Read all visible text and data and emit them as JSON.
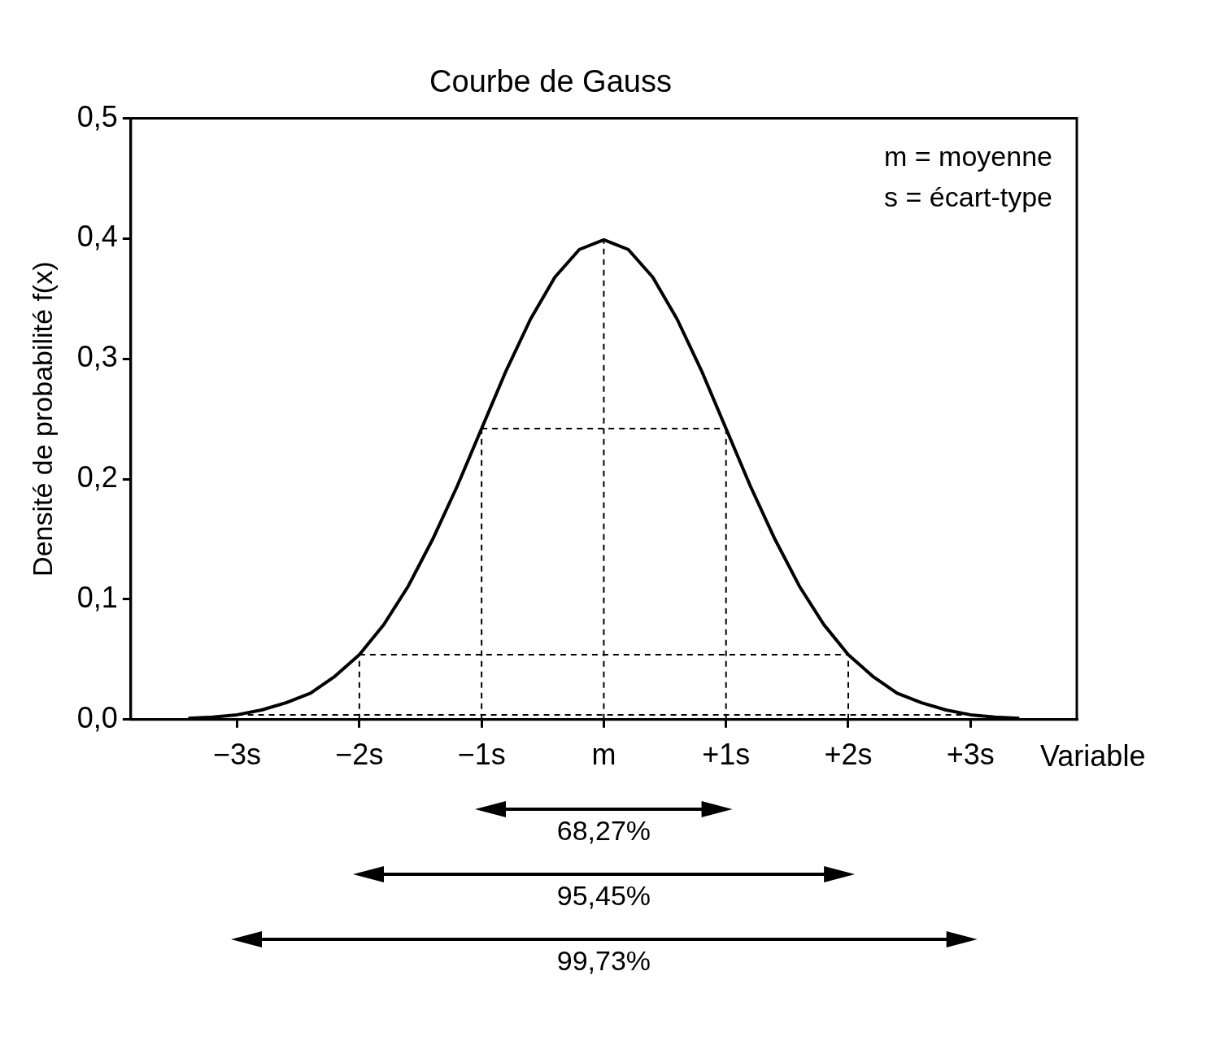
{
  "chart_data": {
    "type": "line",
    "title": "Courbe de Gauss",
    "xlabel": "Variable",
    "ylabel": "Densité de probabilité f(x)",
    "xlim": [
      -3.87,
      3.87
    ],
    "xticks": [
      {
        "value": -3,
        "label": "−3s"
      },
      {
        "value": -2,
        "label": "−2s"
      },
      {
        "value": -1,
        "label": "−1s"
      },
      {
        "value": 0,
        "label": "m"
      },
      {
        "value": 1,
        "label": "+1s"
      },
      {
        "value": 2,
        "label": "+2s"
      },
      {
        "value": 3,
        "label": "+3s"
      }
    ],
    "ylim": [
      0,
      0.5
    ],
    "yticks": [
      {
        "value": 0,
        "label": "0,0"
      },
      {
        "value": 0.1,
        "label": "0,1"
      },
      {
        "value": 0.2,
        "label": "0,2"
      },
      {
        "value": 0.3,
        "label": "0,3"
      },
      {
        "value": 0.4,
        "label": "0,4"
      },
      {
        "value": 0.5,
        "label": "0,5"
      }
    ],
    "grid": false,
    "legend": false,
    "marker": "none",
    "series": [
      {
        "color": "#000000",
        "line_style": "solid",
        "x": [
          -3.4,
          -3.2,
          -3.0,
          -2.8,
          -2.6,
          -2.4,
          -2.2,
          -2.0,
          -1.8,
          -1.6,
          -1.4,
          -1.2,
          -1.0,
          -0.8,
          -0.6,
          -0.4,
          -0.2,
          0,
          0.2,
          0.4,
          0.6,
          0.8,
          1.0,
          1.2,
          1.4,
          1.6,
          1.8,
          2.0,
          2.2,
          2.4,
          2.6,
          2.8,
          3.0,
          3.2,
          3.4
        ],
        "values": [
          0.001,
          0.002,
          0.004,
          0.008,
          0.014,
          0.022,
          0.036,
          0.054,
          0.079,
          0.111,
          0.15,
          0.194,
          0.242,
          0.29,
          0.333,
          0.368,
          0.391,
          0.399,
          0.391,
          0.368,
          0.333,
          0.29,
          0.242,
          0.194,
          0.15,
          0.111,
          0.079,
          0.054,
          0.036,
          0.022,
          0.014,
          0.008,
          0.004,
          0.002,
          0.001
        ]
      },
      {
        "color": "#000000",
        "line_style": "dashed",
        "x": [
          -2,
          -2
        ],
        "values": [
          0,
          0.054
        ]
      },
      {
        "color": "#000000",
        "line_style": "dashed",
        "x": [
          -1,
          -1
        ],
        "values": [
          0,
          0.242
        ]
      },
      {
        "color": "#000000",
        "line_style": "dashed",
        "x": [
          0,
          0
        ],
        "values": [
          0,
          0.399
        ]
      },
      {
        "color": "#000000",
        "line_style": "dashed",
        "x": [
          1,
          1
        ],
        "values": [
          0,
          0.242
        ]
      },
      {
        "color": "#000000",
        "line_style": "dashed",
        "x": [
          2,
          2
        ],
        "values": [
          0,
          0.054
        ]
      },
      {
        "color": "#000000",
        "line_style": "dashed",
        "x": [
          -1,
          1
        ],
        "values": [
          0.242,
          0.242
        ]
      },
      {
        "color": "#000000",
        "line_style": "dashed",
        "x": [
          -2,
          2
        ],
        "values": [
          0.054,
          0.054
        ]
      },
      {
        "color": "#000000",
        "line_style": "dashed",
        "x": [
          -3,
          3
        ],
        "values": [
          0.004,
          0.004
        ]
      }
    ],
    "annotations": [
      "m = moyenne",
      "s = écart-type",
      "68,27%",
      "95,45%",
      "99,73%"
    ]
  }
}
